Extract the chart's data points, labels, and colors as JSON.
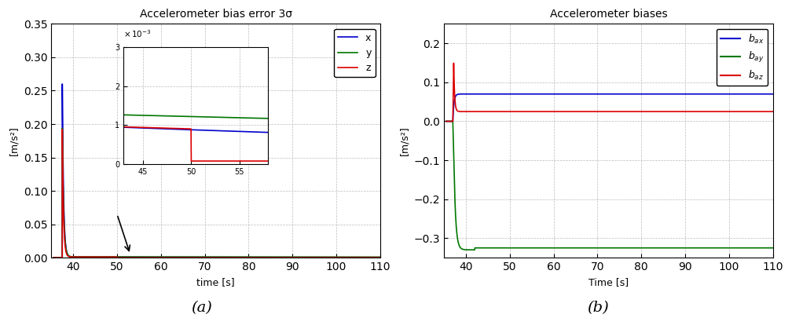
{
  "left_title": "Accelerometer bias error 3σ",
  "left_xlabel": "time [s]",
  "left_ylabel": "[m/s²]",
  "left_xlim": [
    35,
    110
  ],
  "left_ylim": [
    0,
    0.35
  ],
  "left_yticks": [
    0,
    0.05,
    0.1,
    0.15,
    0.2,
    0.25,
    0.3,
    0.35
  ],
  "left_xticks": [
    40,
    50,
    60,
    70,
    80,
    90,
    100,
    110
  ],
  "right_title": "Accelerometer biases",
  "right_xlabel": "Time [s]",
  "right_ylabel": "[m/s²]",
  "right_xlim": [
    35,
    110
  ],
  "right_ylim": [
    -0.35,
    0.25
  ],
  "right_yticks": [
    -0.3,
    -0.2,
    -0.1,
    0.0,
    0.1,
    0.2
  ],
  "right_xticks": [
    40,
    50,
    60,
    70,
    80,
    90,
    100,
    110
  ],
  "color_blue": "#0000CC",
  "color_green": "#007700",
  "color_red": "#DD0000",
  "color_grid": "#BBBBBB",
  "label_a": "(a)",
  "label_b": "(b)"
}
